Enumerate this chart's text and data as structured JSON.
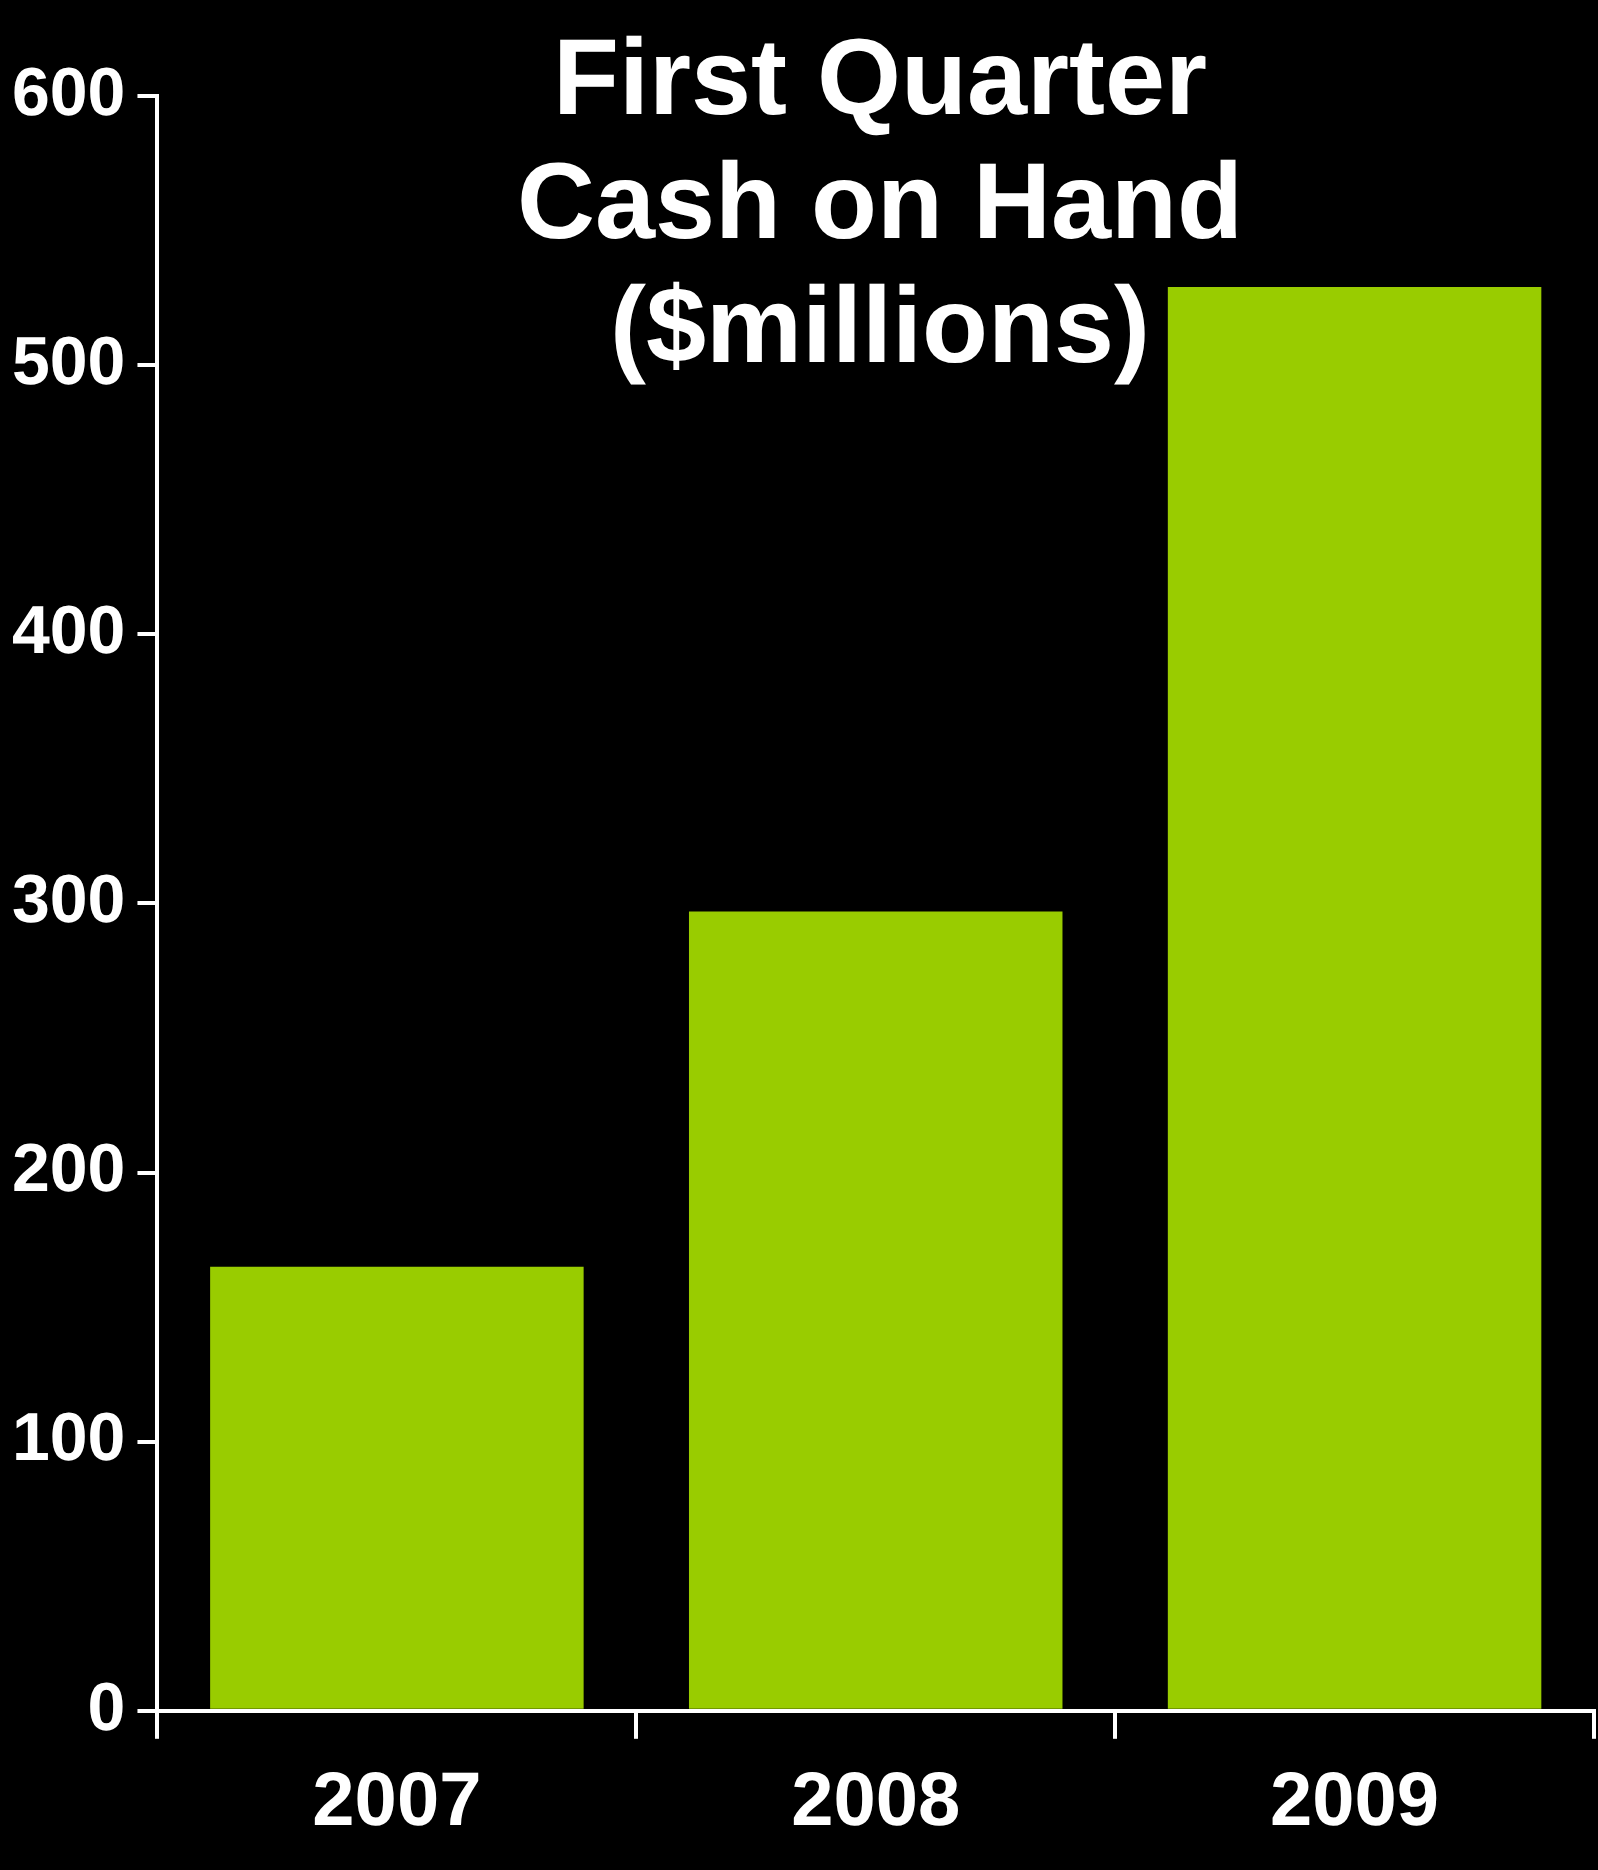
{
  "chart_data": {
    "type": "bar",
    "title": "First Quarter Cash on Hand ($millions)",
    "categories": [
      "2007",
      "2008",
      "2009"
    ],
    "values": [
      165,
      297,
      529
    ],
    "color": "#99cc00",
    "ylim": [
      0,
      600
    ],
    "yticks": [
      0,
      100,
      200,
      300,
      400,
      500,
      600
    ],
    "grid": false,
    "legend": false
  }
}
